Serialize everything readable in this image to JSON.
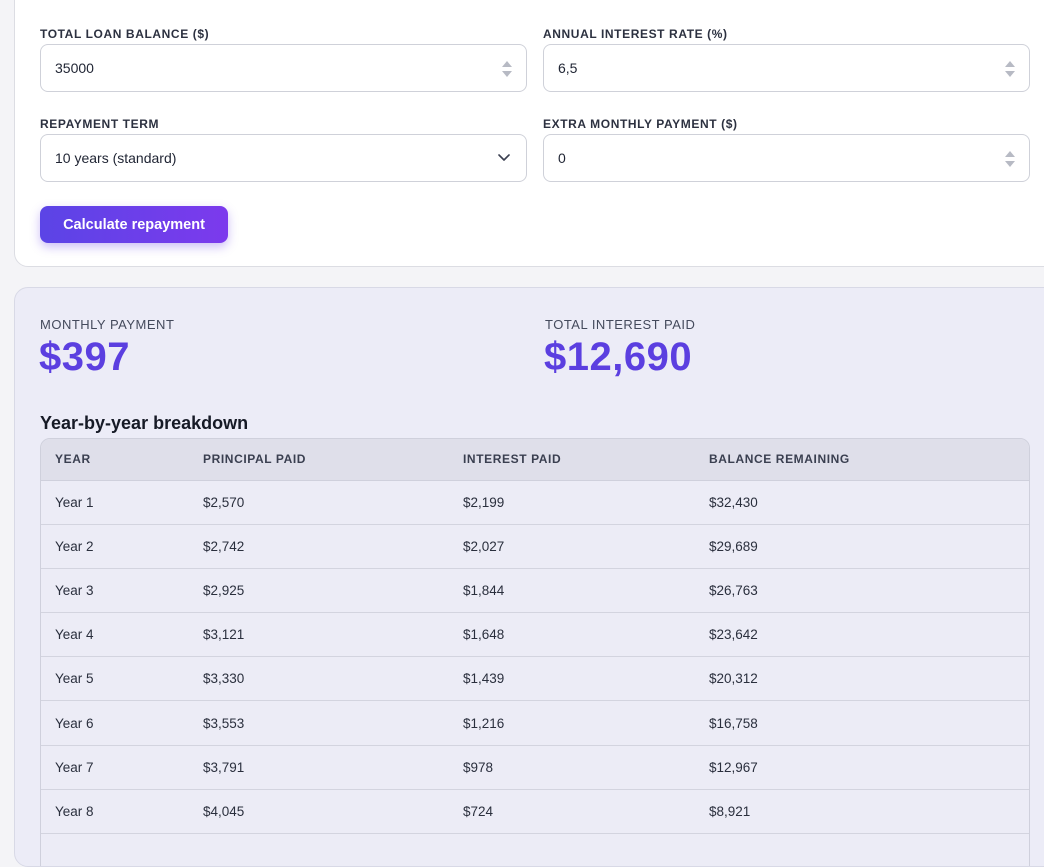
{
  "form": {
    "loan_balance": {
      "label": "TOTAL LOAN BALANCE ($)",
      "value": "35000"
    },
    "interest_rate": {
      "label": "ANNUAL INTEREST RATE (%)",
      "value": "6,5"
    },
    "repayment_term": {
      "label": "REPAYMENT TERM",
      "selected": "10 years (standard)"
    },
    "extra_payment": {
      "label": "EXTRA MONTHLY PAYMENT ($)",
      "value": "0"
    },
    "calculate_label": "Calculate repayment"
  },
  "results": {
    "monthly_payment": {
      "label": "MONTHLY PAYMENT",
      "value": "$397"
    },
    "total_interest": {
      "label": "TOTAL INTEREST PAID",
      "value": "$12,690"
    },
    "breakdown_title": "Year-by-year breakdown",
    "table": {
      "headers": [
        "YEAR",
        "PRINCIPAL PAID",
        "INTEREST PAID",
        "BALANCE REMAINING"
      ],
      "rows": [
        [
          "Year 1",
          "$2,570",
          "$2,199",
          "$32,430"
        ],
        [
          "Year 2",
          "$2,742",
          "$2,027",
          "$29,689"
        ],
        [
          "Year 3",
          "$2,925",
          "$1,844",
          "$26,763"
        ],
        [
          "Year 4",
          "$3,121",
          "$1,648",
          "$23,642"
        ],
        [
          "Year 5",
          "$3,330",
          "$1,439",
          "$20,312"
        ],
        [
          "Year 6",
          "$3,553",
          "$1,216",
          "$16,758"
        ],
        [
          "Year 7",
          "$3,791",
          "$978",
          "$12,967"
        ],
        [
          "Year 8",
          "$4,045",
          "$724",
          "$8,921"
        ]
      ]
    }
  },
  "colors": {
    "accent": "#5b3fe0",
    "button_gradient_start": "#5b44e6",
    "button_gradient_end": "#7c3aed",
    "results_background": "#ececf7"
  },
  "icons": {
    "spinner": "spinner-arrows-icon",
    "select": "chevron-down-icon"
  }
}
